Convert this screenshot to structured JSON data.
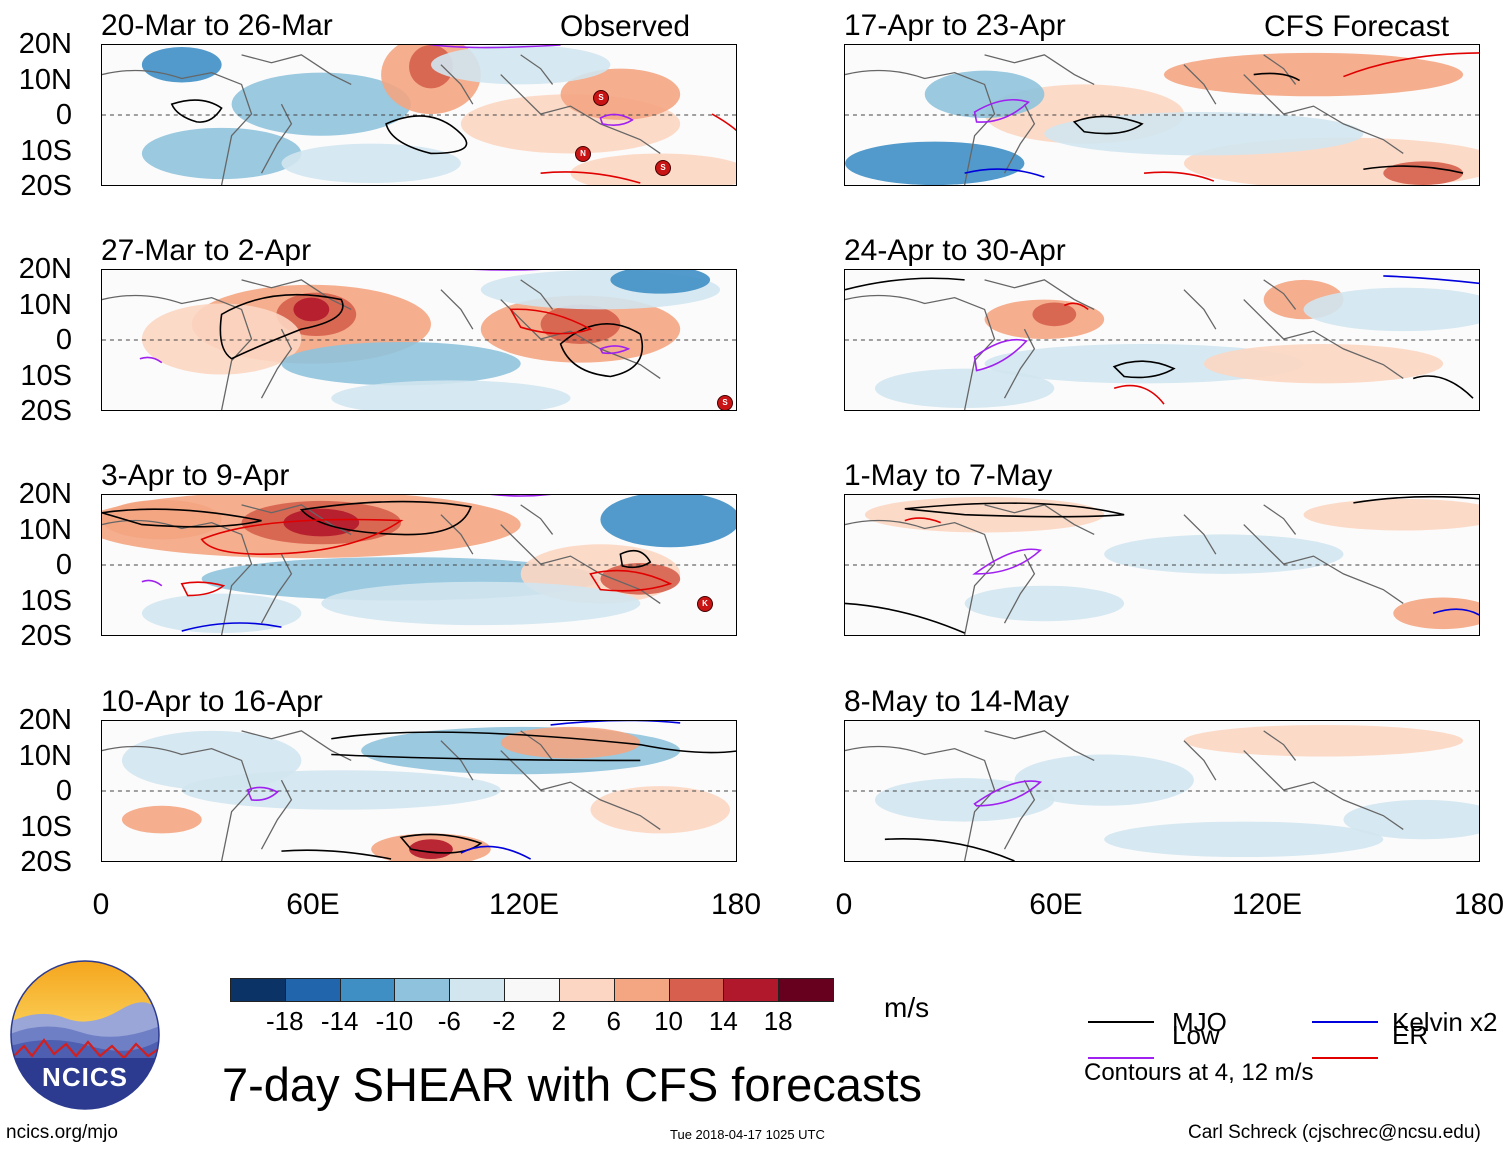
{
  "column_titles": {
    "left": "Observed",
    "right": "CFS Forecast"
  },
  "panels": [
    {
      "id": "p1",
      "title": "20-Mar to 26-Mar",
      "column": "left",
      "row": 0
    },
    {
      "id": "p2",
      "title": "27-Mar to 2-Apr",
      "column": "left",
      "row": 1
    },
    {
      "id": "p3",
      "title": "3-Apr to 9-Apr",
      "column": "left",
      "row": 2
    },
    {
      "id": "p4",
      "title": "10-Apr to 16-Apr",
      "column": "left",
      "row": 3
    },
    {
      "id": "p5",
      "title": "17-Apr to 23-Apr",
      "column": "right",
      "row": 0
    },
    {
      "id": "p6",
      "title": "24-Apr to 30-Apr",
      "column": "right",
      "row": 1
    },
    {
      "id": "p7",
      "title": "1-May to 7-May",
      "column": "right",
      "row": 2
    },
    {
      "id": "p8",
      "title": "8-May to 14-May",
      "column": "right",
      "row": 3
    }
  ],
  "lat_ticks": [
    "20N",
    "10N",
    "0",
    "10S",
    "20S"
  ],
  "lon_ticks": [
    "0",
    "60E",
    "120E",
    "180"
  ],
  "colorbar": {
    "colors": [
      "#0b3366",
      "#2166ac",
      "#3f8fc5",
      "#8fc3dd",
      "#d2e6f0",
      "#f8f8f8",
      "#fcd6c2",
      "#f4a582",
      "#d6604d",
      "#b2182b",
      "#67001f"
    ],
    "labels": [
      "-18",
      "-14",
      "-10",
      "-6",
      "-2",
      "2",
      "6",
      "10",
      "14",
      "18"
    ],
    "units": "m/s"
  },
  "legend": {
    "items": [
      {
        "name": "MJO",
        "color": "#000000"
      },
      {
        "name": "Kelvin x2",
        "color": "#0000dd"
      },
      {
        "name": "Low",
        "color": "#a020f0"
      },
      {
        "name": "ER",
        "color": "#e00000"
      }
    ],
    "note": "Contours at 4, 12 m/s"
  },
  "main_title": "7-day SHEAR with CFS forecasts",
  "logo_text": "NCICS",
  "footer": {
    "url": "ncics.org/mjo",
    "timestamp": "Tue 2018-04-17 1025 UTC",
    "credit": "Carl Schreck (cjschrec@ncsu.edu)"
  },
  "storms": [
    {
      "panel": "p1",
      "letter": "S"
    },
    {
      "panel": "p1",
      "letter": "N"
    },
    {
      "panel": "p1",
      "letter": "S"
    },
    {
      "panel": "p2",
      "letter": "S"
    },
    {
      "panel": "p3",
      "letter": "K"
    }
  ]
}
